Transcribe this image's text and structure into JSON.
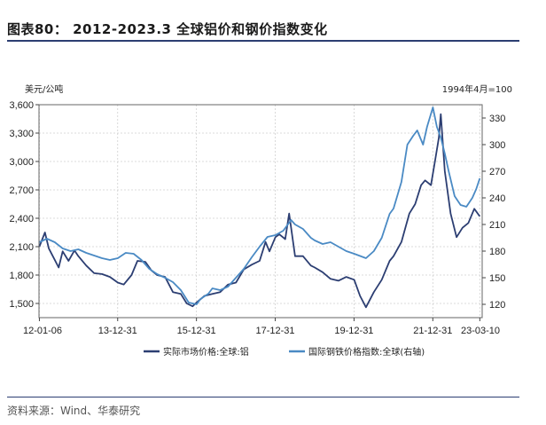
{
  "header": {
    "title": "图表80： 2012-2023.3 全球铝价和钢价指数变化"
  },
  "footer": {
    "source": "资料来源：Wind、华泰研究"
  },
  "colors": {
    "aluminum": "#2c3e72",
    "steel": "#4a8ac4",
    "rule": "#2c3e72",
    "grid": "#d0d0d0"
  },
  "chart_data": {
    "type": "line",
    "title": "",
    "x_ticks": [
      {
        "label": "12-01-06",
        "x": 2012.01
      },
      {
        "label": "13-12-31",
        "x": 2013.997
      },
      {
        "label": "15-12-31",
        "x": 2015.997
      },
      {
        "label": "17-12-31",
        "x": 2017.997
      },
      {
        "label": "19-12-31",
        "x": 2019.997
      },
      {
        "label": "21-12-31",
        "x": 2021.997
      },
      {
        "label": "23-03-10",
        "x": 2023.19
      }
    ],
    "xlim": [
      2012.0,
      2023.25
    ],
    "left_axis": {
      "label": "美元/公吨",
      "ylim": [
        1350,
        3600
      ],
      "ticks": [
        1500,
        1800,
        2100,
        2400,
        2700,
        3000,
        3300,
        3600
      ],
      "tick_labels": [
        "1,500",
        "1,800",
        "2,100",
        "2,400",
        "2,700",
        "3,000",
        "3,300",
        "3,600"
      ]
    },
    "right_axis": {
      "label": "1994年4月=100",
      "ylim": [
        105,
        345
      ],
      "ticks": [
        120,
        150,
        180,
        210,
        240,
        270,
        300,
        330
      ],
      "tick_labels": [
        "120",
        "150",
        "180",
        "210",
        "240",
        "270",
        "300",
        "330"
      ]
    },
    "series": [
      {
        "name": "实际市场价格:全球:铝",
        "axis": "left",
        "color": "#2c3e72",
        "x": [
          2012.01,
          2012.15,
          2012.25,
          2012.4,
          2012.5,
          2012.6,
          2012.75,
          2012.9,
          2013.0,
          2013.2,
          2013.4,
          2013.6,
          2013.8,
          2014.0,
          2014.15,
          2014.35,
          2014.5,
          2014.7,
          2014.85,
          2015.0,
          2015.2,
          2015.4,
          2015.6,
          2015.75,
          2015.9,
          2016.0,
          2016.2,
          2016.4,
          2016.6,
          2016.8,
          2017.0,
          2017.2,
          2017.4,
          2017.6,
          2017.75,
          2017.85,
          2018.0,
          2018.1,
          2018.25,
          2018.35,
          2018.5,
          2018.7,
          2018.9,
          2019.0,
          2019.2,
          2019.4,
          2019.6,
          2019.8,
          2020.0,
          2020.15,
          2020.3,
          2020.5,
          2020.7,
          2020.9,
          2021.0,
          2021.2,
          2021.4,
          2021.55,
          2021.7,
          2021.8,
          2021.95,
          2022.05,
          2022.15,
          2022.2,
          2022.3,
          2022.45,
          2022.6,
          2022.75,
          2022.9,
          2023.05,
          2023.19
        ],
        "y": [
          2100,
          2250,
          2080,
          1960,
          1880,
          2050,
          1950,
          2060,
          2000,
          1900,
          1820,
          1810,
          1780,
          1720,
          1700,
          1800,
          1950,
          1940,
          1850,
          1800,
          1780,
          1620,
          1600,
          1500,
          1470,
          1510,
          1580,
          1600,
          1620,
          1700,
          1720,
          1860,
          1910,
          1950,
          2150,
          2050,
          2200,
          2230,
          2180,
          2450,
          2000,
          2000,
          1900,
          1880,
          1830,
          1760,
          1740,
          1780,
          1750,
          1580,
          1460,
          1620,
          1750,
          1950,
          2000,
          2150,
          2450,
          2550,
          2750,
          2800,
          2750,
          3000,
          3250,
          3500,
          2900,
          2450,
          2200,
          2300,
          2350,
          2500,
          2420
        ]
      },
      {
        "name": "国际钢铁价格指数:全球(右轴)",
        "axis": "right",
        "color": "#4a8ac4",
        "x": [
          2012.01,
          2012.2,
          2012.4,
          2012.6,
          2012.8,
          2013.0,
          2013.2,
          2013.4,
          2013.6,
          2013.8,
          2014.0,
          2014.2,
          2014.4,
          2014.6,
          2014.8,
          2015.0,
          2015.2,
          2015.4,
          2015.6,
          2015.8,
          2016.0,
          2016.1,
          2016.3,
          2016.4,
          2016.6,
          2016.8,
          2017.0,
          2017.2,
          2017.4,
          2017.6,
          2017.8,
          2018.0,
          2018.2,
          2018.4,
          2018.5,
          2018.7,
          2018.9,
          2019.0,
          2019.2,
          2019.4,
          2019.6,
          2019.8,
          2020.0,
          2020.3,
          2020.5,
          2020.7,
          2020.9,
          2021.0,
          2021.2,
          2021.35,
          2021.5,
          2021.6,
          2021.75,
          2021.85,
          2022.0,
          2022.1,
          2022.2,
          2022.3,
          2022.4,
          2022.55,
          2022.7,
          2022.85,
          2023.0,
          2023.1,
          2023.19
        ],
        "y": [
          190,
          194,
          190,
          183,
          180,
          182,
          178,
          175,
          172,
          170,
          172,
          178,
          177,
          170,
          160,
          154,
          150,
          145,
          136,
          122,
          120,
          126,
          132,
          138,
          136,
          140,
          150,
          160,
          173,
          185,
          196,
          198,
          203,
          215,
          210,
          205,
          195,
          192,
          188,
          190,
          185,
          180,
          177,
          172,
          180,
          195,
          222,
          228,
          258,
          300,
          310,
          316,
          300,
          320,
          342,
          320,
          308,
          290,
          270,
          242,
          232,
          230,
          240,
          250,
          262
        ]
      }
    ],
    "legend": {
      "placement": "bottom-center"
    },
    "grid": {
      "x": true,
      "y": true
    }
  }
}
